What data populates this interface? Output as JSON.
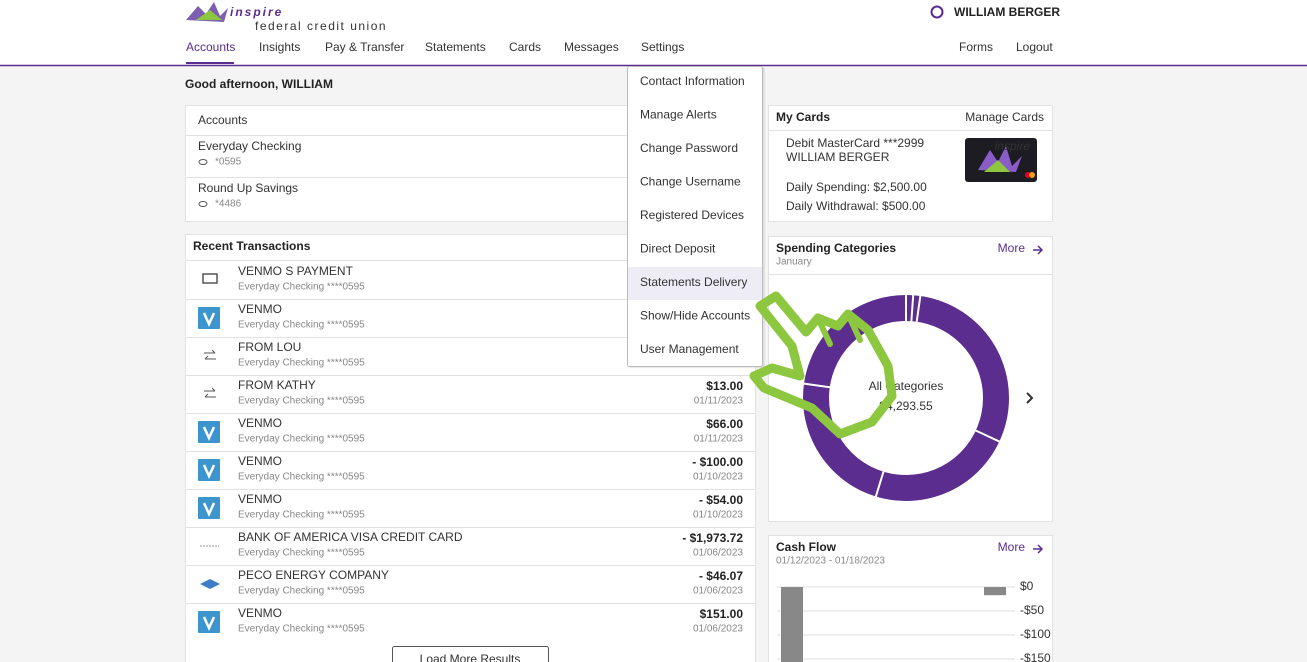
{
  "header": {
    "logo": "inspire",
    "logo_tagline": "federal credit union",
    "user": "WILLIAM BERGER",
    "nav": [
      "Accounts",
      "Insights",
      "Pay & Transfer",
      "Statements",
      "Cards",
      "Messages",
      "Settings"
    ],
    "nav_right": [
      "Forms",
      "Logout"
    ]
  },
  "greeting": "Good afternoon, WILLIAM",
  "accounts": {
    "title": "Accounts",
    "items": [
      {
        "name": "Everyday Checking",
        "number": "*0595"
      },
      {
        "name": "Round Up Savings",
        "number": "*4486"
      }
    ]
  },
  "transactions": {
    "title": "Recent Transactions",
    "items": [
      {
        "name": "VENMO S PAYMENT",
        "account": "Everyday Checking ****0595"
      },
      {
        "name": "VENMO",
        "account": "Everyday Checking ****0595"
      },
      {
        "name": "FROM LOU",
        "account": "Everyday Checking ****0595"
      },
      {
        "name": "FROM KATHY",
        "account": "Everyday Checking ****0595",
        "amount": "$13.00",
        "date": "01/11/2023"
      },
      {
        "name": "VENMO",
        "account": "Everyday Checking ****0595",
        "amount": "$66.00",
        "date": "01/11/2023"
      },
      {
        "name": "VENMO",
        "account": "Everyday Checking ****0595",
        "amount": "- $100.00",
        "date": "01/10/2023"
      },
      {
        "name": "VENMO",
        "account": "Everyday Checking ****0595",
        "amount": "- $54.00",
        "date": "01/10/2023"
      },
      {
        "name": "BANK OF AMERICA VISA CREDIT CARD",
        "account": "Everyday Checking ****0595",
        "amount": "- $1,973.72",
        "date": "01/06/2023"
      },
      {
        "name": "PECO ENERGY COMPANY",
        "account": "Everyday Checking ****0595",
        "amount": "- $46.07",
        "date": "01/06/2023"
      },
      {
        "name": "VENMO",
        "account": "Everyday Checking ****0595",
        "amount": "$151.00",
        "date": "01/06/2023"
      }
    ],
    "load_more": "Load More Results"
  },
  "settings_menu": {
    "items": [
      "Contact Information",
      "Manage Alerts",
      "Change Password",
      "Change Username",
      "Registered Devices",
      "Direct Deposit",
      "Statements Delivery",
      "Show/Hide Accounts",
      "User Management"
    ]
  },
  "my_cards": {
    "title": "My Cards",
    "link": "Manage Cards",
    "card_name": "Debit MasterCard ***2999",
    "holder": "WILLIAM BERGER",
    "card_logo": "inspire",
    "daily_spending": "Daily Spending: $2,500.00",
    "daily_withdrawal": "Daily Withdrawal: $500.00"
  },
  "spending": {
    "title": "Spending Categories",
    "link": "More",
    "period": "January",
    "center_label": "All Categories",
    "center_value": "$4,293.55"
  },
  "cash_flow": {
    "title": "Cash Flow",
    "link": "More",
    "period": "01/12/2023 - 01/18/2023",
    "yticks": [
      {
        "value": 0,
        "label": "$0"
      },
      {
        "value": -50,
        "label": "-$50"
      },
      {
        "value": -100,
        "label": "-$100"
      },
      {
        "value": -150,
        "label": "-$150"
      }
    ],
    "values": [
      -160,
      -17
    ]
  }
}
